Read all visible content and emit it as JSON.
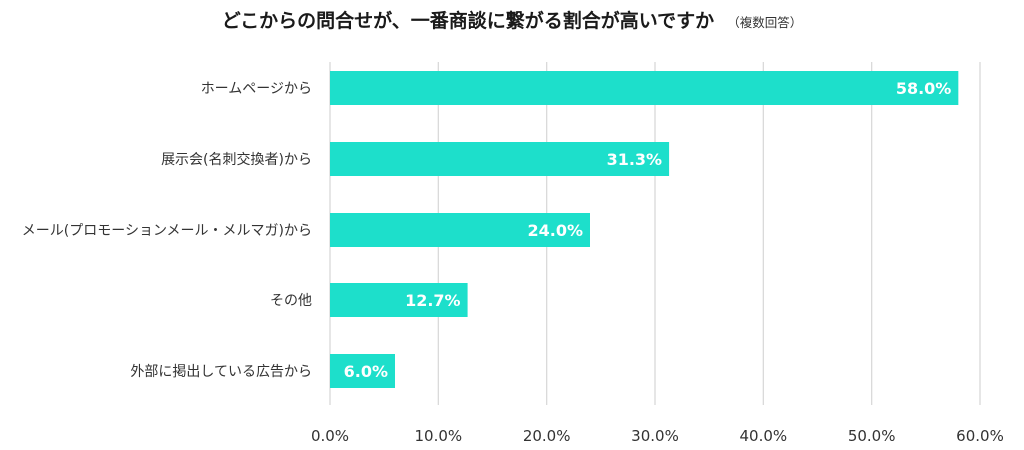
{
  "chart_data": {
    "type": "bar",
    "orientation": "horizontal",
    "title": "どこからの問合せが、一番商談に繋がる割合が高いですか",
    "subtitle": "（複数回答）",
    "categories": [
      "ホームページから",
      "展示会(名刺交換者)から",
      "メール(プロモーションメール・メルマガ)から",
      "その他",
      "外部に掲出している広告から"
    ],
    "values": [
      58.0,
      31.3,
      24.0,
      12.7,
      6.0
    ],
    "data_labels": [
      "58.0%",
      "31.3%",
      "24.0%",
      "12.7%",
      "6.0%"
    ],
    "xlim": [
      0,
      60
    ],
    "x_ticks": [
      "0.0%",
      "10.0%",
      "20.0%",
      "30.0%",
      "40.0%",
      "50.0%",
      "60.0%"
    ],
    "grid": true,
    "bar_color": "#1ddfcb",
    "grid_color": "#d9d9d9"
  }
}
